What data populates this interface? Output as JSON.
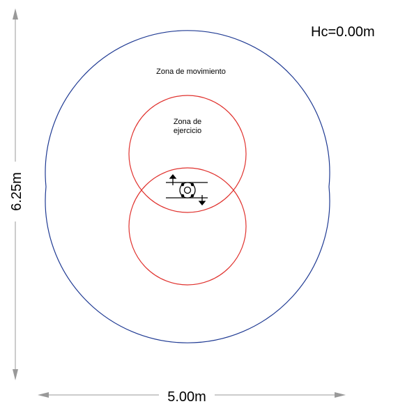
{
  "drawing": {
    "height_label": "6.25m",
    "width_label": "5.00m",
    "hc_label": "Hc=0.00m",
    "movement_zone_label": "Zona de movimiento",
    "exercise_zone_label_line1": "Zona de",
    "exercise_zone_label_line2": "ejercicio"
  },
  "colors": {
    "movement_zone": "#1f3a93",
    "exercise_zone": "#e0312d",
    "dimension_line": "#999999",
    "equipment": "#000000"
  }
}
